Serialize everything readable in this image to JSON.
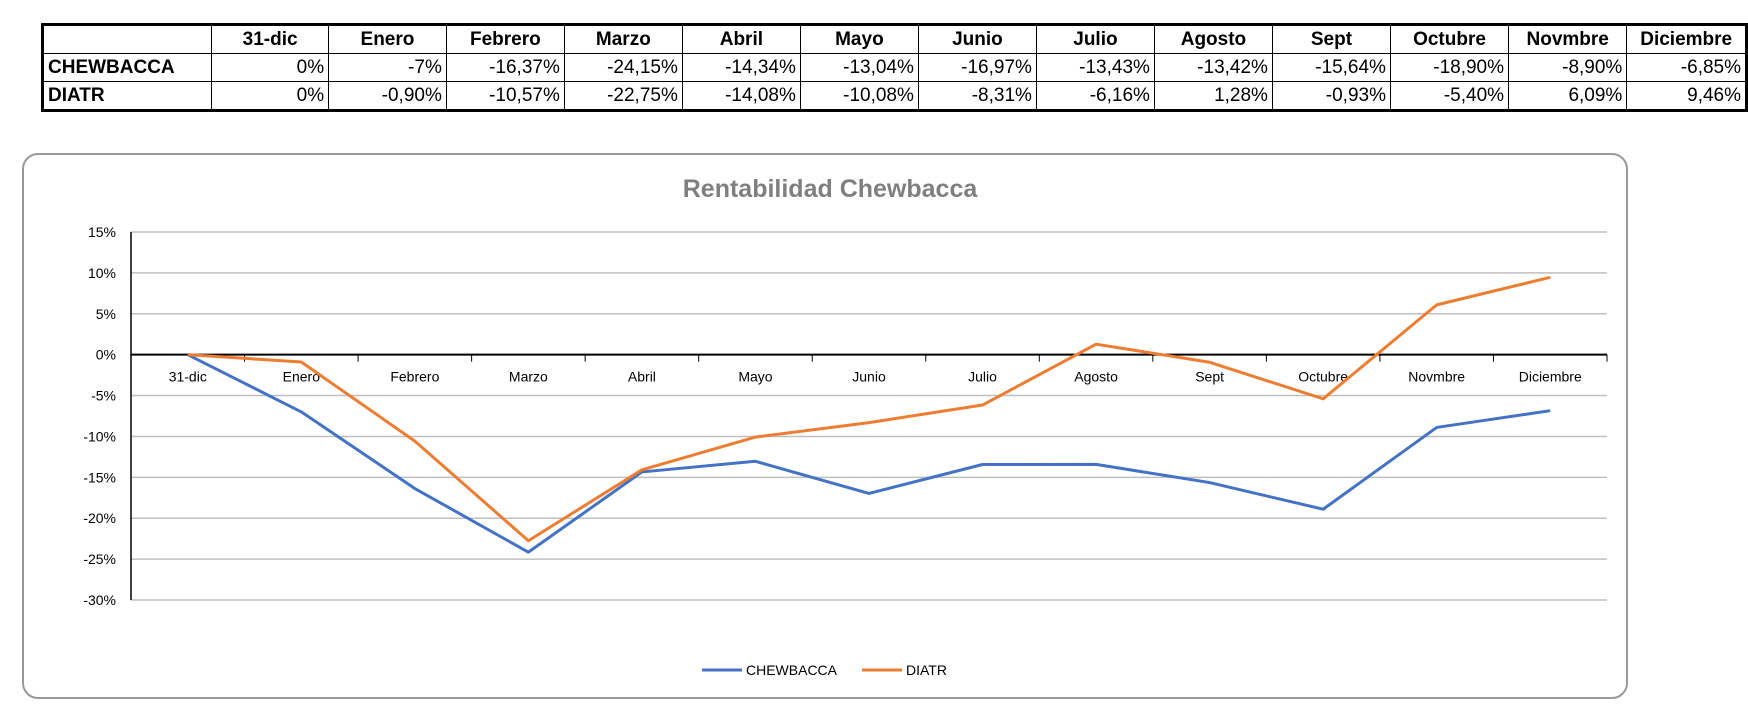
{
  "table": {
    "headers": [
      "",
      "31-dic",
      "Enero",
      "Febrero",
      "Marzo",
      "Abril",
      "Mayo",
      "Junio",
      "Julio",
      "Agosto",
      "Sept",
      "Octubre",
      "Novmbre",
      "Diciembre"
    ],
    "rows": [
      {
        "label": "CHEWBACCA",
        "cells": [
          "0%",
          "-7%",
          "-16,37%",
          "-24,15%",
          "-14,34%",
          "-13,04%",
          "-16,97%",
          "-13,43%",
          "-13,42%",
          "-15,64%",
          "-18,90%",
          "-8,90%",
          "-6,85%"
        ]
      },
      {
        "label": "DIATR",
        "cells": [
          "0%",
          "-0,90%",
          "-10,57%",
          "-22,75%",
          "-14,08%",
          "-10,08%",
          "-8,31%",
          "-6,16%",
          "1,28%",
          "-0,93%",
          "-5,40%",
          "6,09%",
          "9,46%"
        ]
      }
    ]
  },
  "chart_data": {
    "type": "line",
    "title": "Rentabilidad Chewbacca",
    "categories": [
      "31-dic",
      "Enero",
      "Febrero",
      "Marzo",
      "Abril",
      "Mayo",
      "Junio",
      "Julio",
      "Agosto",
      "Sept",
      "Octubre",
      "Novmbre",
      "Diciembre"
    ],
    "series": [
      {
        "name": "CHEWBACCA",
        "color": "#4472C4",
        "values": [
          0,
          -7,
          -16.37,
          -24.15,
          -14.34,
          -13.04,
          -16.97,
          -13.43,
          -13.42,
          -15.64,
          -18.9,
          -8.9,
          -6.85
        ]
      },
      {
        "name": "DIATR",
        "color": "#ED7D31",
        "values": [
          0,
          -0.9,
          -10.57,
          -22.75,
          -14.08,
          -10.08,
          -8.31,
          -6.16,
          1.28,
          -0.93,
          -5.4,
          6.09,
          9.46
        ]
      }
    ],
    "ylim": [
      -30,
      15
    ],
    "yticks": [
      "15%",
      "10%",
      "5%",
      "0%",
      "-5%",
      "-10%",
      "-15%",
      "-20%",
      "-25%",
      "-30%"
    ],
    "grid": true,
    "legend": "bottom"
  }
}
